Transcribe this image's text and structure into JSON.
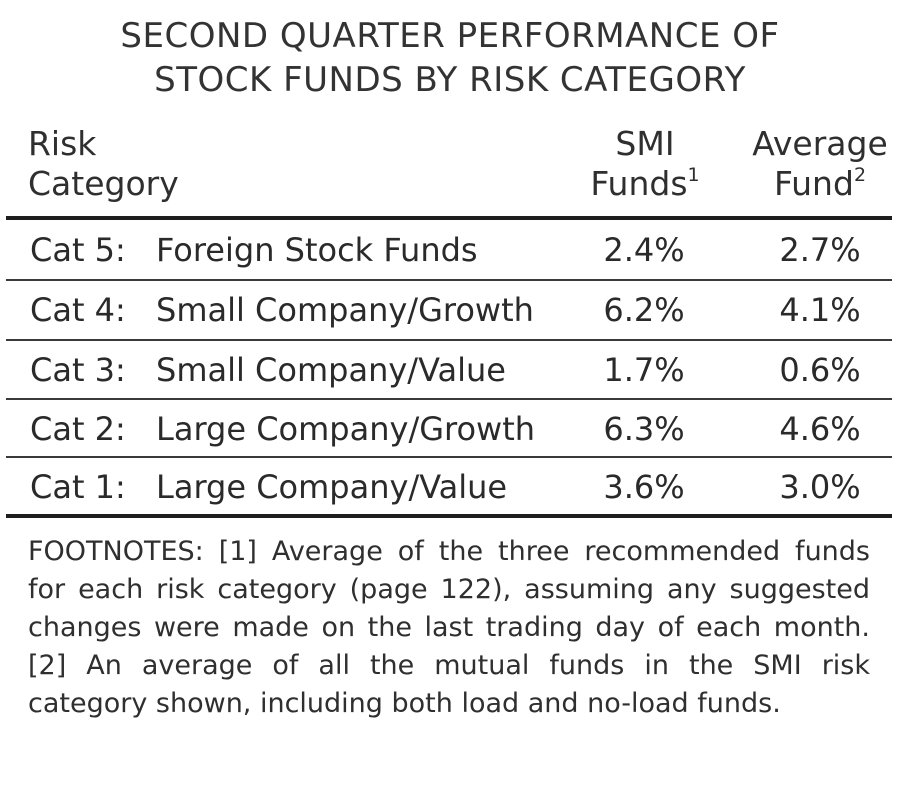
{
  "chart_data": {
    "type": "table",
    "title_lines": [
      "SECOND QUARTER PERFORMANCE OF",
      "STOCK FUNDS BY RISK CATEGORY"
    ],
    "headers": {
      "risk": [
        "Risk",
        "Category"
      ],
      "smi": {
        "lines": [
          "SMI",
          "Funds"
        ],
        "footnote_mark": "1"
      },
      "average": {
        "lines": [
          "Average",
          "Fund"
        ],
        "footnote_mark": "2"
      }
    },
    "rows": [
      {
        "category": "Cat 5:",
        "name": "Foreign Stock Funds",
        "smi": "2.4%",
        "average": "2.7%"
      },
      {
        "category": "Cat 4:",
        "name": "Small Company/Growth",
        "smi": "6.2%",
        "average": "4.1%"
      },
      {
        "category": "Cat 3:",
        "name": "Small Company/Value",
        "smi": "1.7%",
        "average": "0.6%"
      },
      {
        "category": "Cat 2:",
        "name": "Large Company/Growth",
        "smi": "6.3%",
        "average": "4.6%"
      },
      {
        "category": "Cat 1:",
        "name": "Large Company/Value",
        "smi": "3.6%",
        "average": "3.0%"
      }
    ],
    "footnotes": "FOOTNOTES: [1] Average of the three recommended funds for each risk category (page 122), assuming any suggested changes were made on the last trading day of each month. [2] An average of all the mutual funds in the SMI risk category shown, including both load and no-load funds."
  }
}
